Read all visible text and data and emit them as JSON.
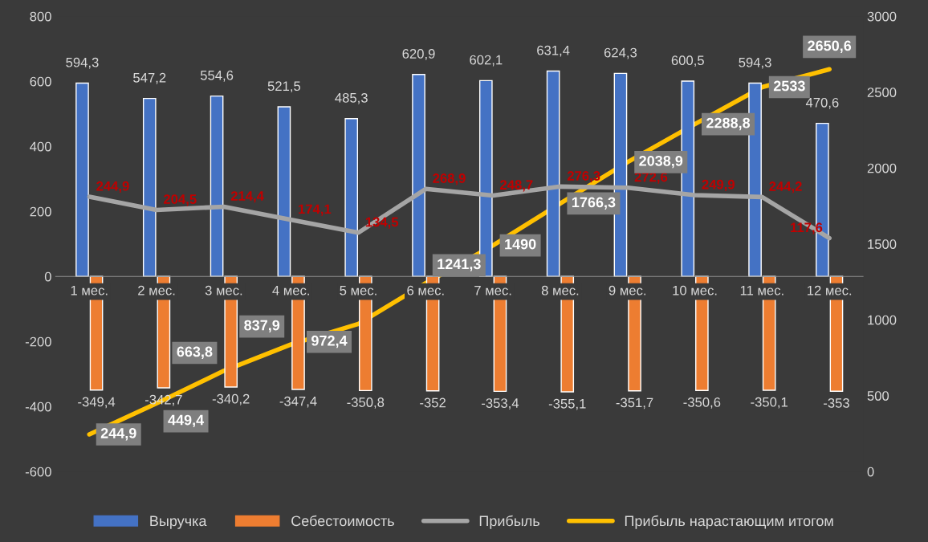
{
  "chart_data": {
    "type": "bar",
    "categories": [
      "1 мес.",
      "2 мес.",
      "3 мес.",
      "4 мес.",
      "5 мес.",
      "6 мес.",
      "7 мес.",
      "8 мес.",
      "9 мес.",
      "10 мес.",
      "11 мес.",
      "12 мес."
    ],
    "series": [
      {
        "name": "Выручка",
        "color": "#4472c4",
        "values": [
          594.3,
          547.2,
          554.6,
          521.5,
          485.3,
          620.9,
          602.1,
          631.4,
          624.3,
          600.5,
          594.3,
          470.6
        ],
        "value_labels": [
          "594,3",
          "547,2",
          "554,6",
          "521,5",
          "485,3",
          "620,9",
          "602,1",
          "631,4",
          "624,3",
          "600,5",
          "594,3",
          "470,6"
        ]
      },
      {
        "name": "Себестоимость",
        "color": "#ed7d31",
        "values": [
          -349.4,
          -342.7,
          -340.2,
          -347.4,
          -350.8,
          -352,
          -353.4,
          -355.1,
          -351.7,
          -350.6,
          -350.1,
          -353
        ],
        "value_labels": [
          "-349,4",
          "-342,7",
          "-340,2",
          "-347,4",
          "-350,8",
          "-352",
          "-353,4",
          "-355,1",
          "-351,7",
          "-350,6",
          "-350,1",
          "-353"
        ]
      },
      {
        "name": "Прибыль",
        "type": "line",
        "color": "#a5a5a5",
        "values": [
          244.9,
          204.5,
          214.4,
          174.1,
          134.5,
          268.9,
          248.7,
          276.3,
          272.6,
          249.9,
          244.2,
          117.6
        ],
        "value_labels": [
          "244,9",
          "204,5",
          "214,4",
          "174,1",
          "134,5",
          "268,9",
          "248,7",
          "276,3",
          "272,6",
          "249,9",
          "244,2",
          "117,6"
        ]
      },
      {
        "name": "Прибыль нарастающим итогом",
        "type": "line",
        "axis": "y2",
        "color": "#ffc000",
        "values": [
          244.9,
          449.4,
          663.8,
          837.9,
          972.4,
          1241.3,
          1490,
          1766.3,
          2038.9,
          2288.8,
          2533,
          2650.6
        ],
        "value_labels": [
          "244,9",
          "449,4",
          "663,8",
          "837,9",
          "972,4",
          "1241,3",
          "1490",
          "1766,3",
          "2038,9",
          "2288,8",
          "2533",
          "2650,6"
        ]
      }
    ],
    "ylim": [
      -600,
      800
    ],
    "yticks": [
      -600,
      -400,
      -200,
      0,
      200,
      400,
      600,
      800
    ],
    "y2lim": [
      0,
      3000
    ],
    "y2ticks": [
      0,
      500,
      1000,
      1500,
      2000,
      2500,
      3000
    ],
    "grid": false,
    "legend": "bottom",
    "marker": "none",
    "line_style": "solid"
  }
}
